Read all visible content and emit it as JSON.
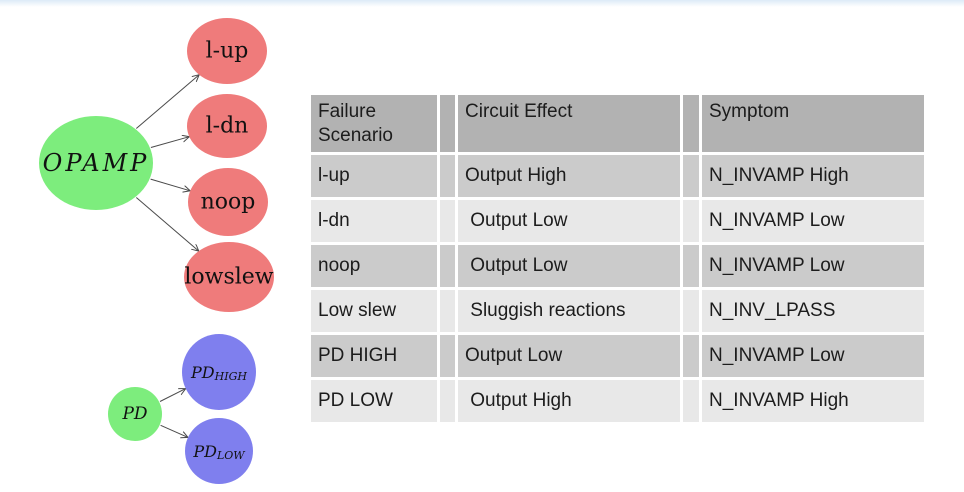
{
  "page": {
    "top_strip_color": "#dcebf7",
    "background": "#ffffff"
  },
  "diagram": {
    "edge_color": "#4a4a4a",
    "text_color": "#111111",
    "nodes": {
      "opamp": {
        "label": "OPAMP",
        "color": "#7ded7d"
      },
      "l_up": {
        "label": "l-up",
        "color": "#ef7b7b"
      },
      "l_dn": {
        "label": "l-dn",
        "color": "#ef7b7b"
      },
      "noop": {
        "label": "noop",
        "color": "#ef7b7b"
      },
      "lowslew": {
        "label": "lowslew",
        "color": "#ef7b7b"
      },
      "pd": {
        "label": "PD",
        "color": "#7ded7d"
      },
      "pd_high": {
        "label_main": "PD",
        "label_sub": "HIGH",
        "color": "#7f7fee"
      },
      "pd_low": {
        "label_main": "PD",
        "label_sub": "LOW",
        "color": "#7f7fee"
      }
    }
  },
  "table": {
    "colors": {
      "header_bg": "#b2b2b2",
      "row_odd_bg": "#cbcbcb",
      "row_even_bg": "#e8e8e8",
      "gridline": "#ffffff",
      "text": "#1c1c1c"
    },
    "headers": [
      "Failure Scenario",
      "Circuit Effect",
      "Symptom"
    ],
    "rows": [
      {
        "scenario": "l-up",
        "effect": "Output High",
        "symptom": "N_INVAMP High"
      },
      {
        "scenario": "l-dn",
        "effect": " Output Low",
        "symptom": "N_INVAMP Low"
      },
      {
        "scenario": "noop",
        "effect": " Output Low",
        "symptom": "N_INVAMP Low"
      },
      {
        "scenario": "Low slew",
        "effect": " Sluggish reactions",
        "symptom": "N_INV_LPASS"
      },
      {
        "scenario": "PD HIGH",
        "effect": "Output Low",
        "symptom": "N_INVAMP Low"
      },
      {
        "scenario": "PD LOW",
        "effect": " Output High",
        "symptom": "N_INVAMP High"
      }
    ]
  }
}
